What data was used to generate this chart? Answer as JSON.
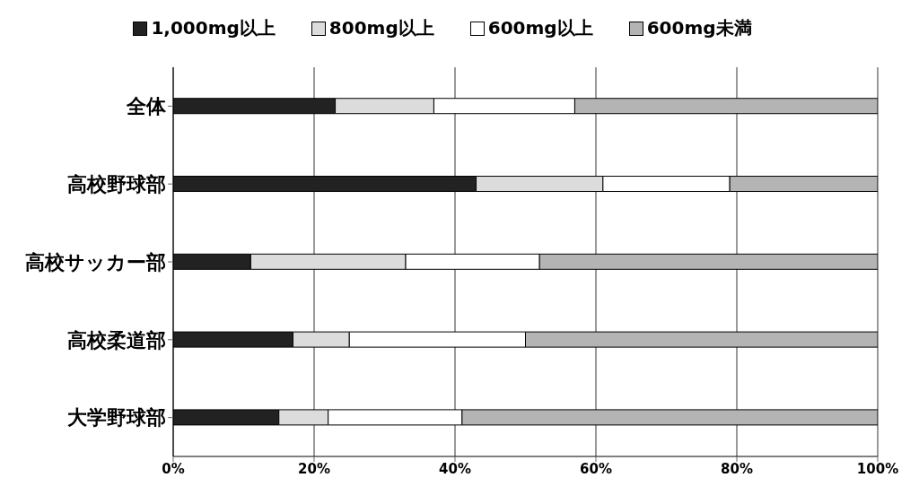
{
  "chart_data": {
    "type": "bar",
    "orientation": "horizontal",
    "stacked": true,
    "categories": [
      "全体",
      "高校野球部",
      "高校サッカー部",
      "高校柔道部",
      "大学野球部"
    ],
    "series": [
      {
        "name": "1,000mg以上",
        "color": "#222222",
        "values": [
          23,
          43,
          11,
          17,
          15
        ]
      },
      {
        "name": "800mg以上",
        "color": "#dcdcdc",
        "values": [
          14,
          18,
          22,
          8,
          7
        ]
      },
      {
        "name": "600mg以上",
        "color": "#ffffff",
        "values": [
          20,
          18,
          19,
          25,
          19
        ]
      },
      {
        "name": "600mg未満",
        "color": "#b4b4b4",
        "values": [
          43,
          21,
          48,
          50,
          59
        ]
      }
    ],
    "xlim": [
      0,
      100
    ],
    "xticks": [
      {
        "value": 0,
        "label": "0%"
      },
      {
        "value": 20,
        "label": "20%"
      },
      {
        "value": 40,
        "label": "40%"
      },
      {
        "value": 60,
        "label": "60%"
      },
      {
        "value": 80,
        "label": "80%"
      },
      {
        "value": 100,
        "label": "100%"
      }
    ],
    "grid": "x",
    "legend": "top"
  }
}
